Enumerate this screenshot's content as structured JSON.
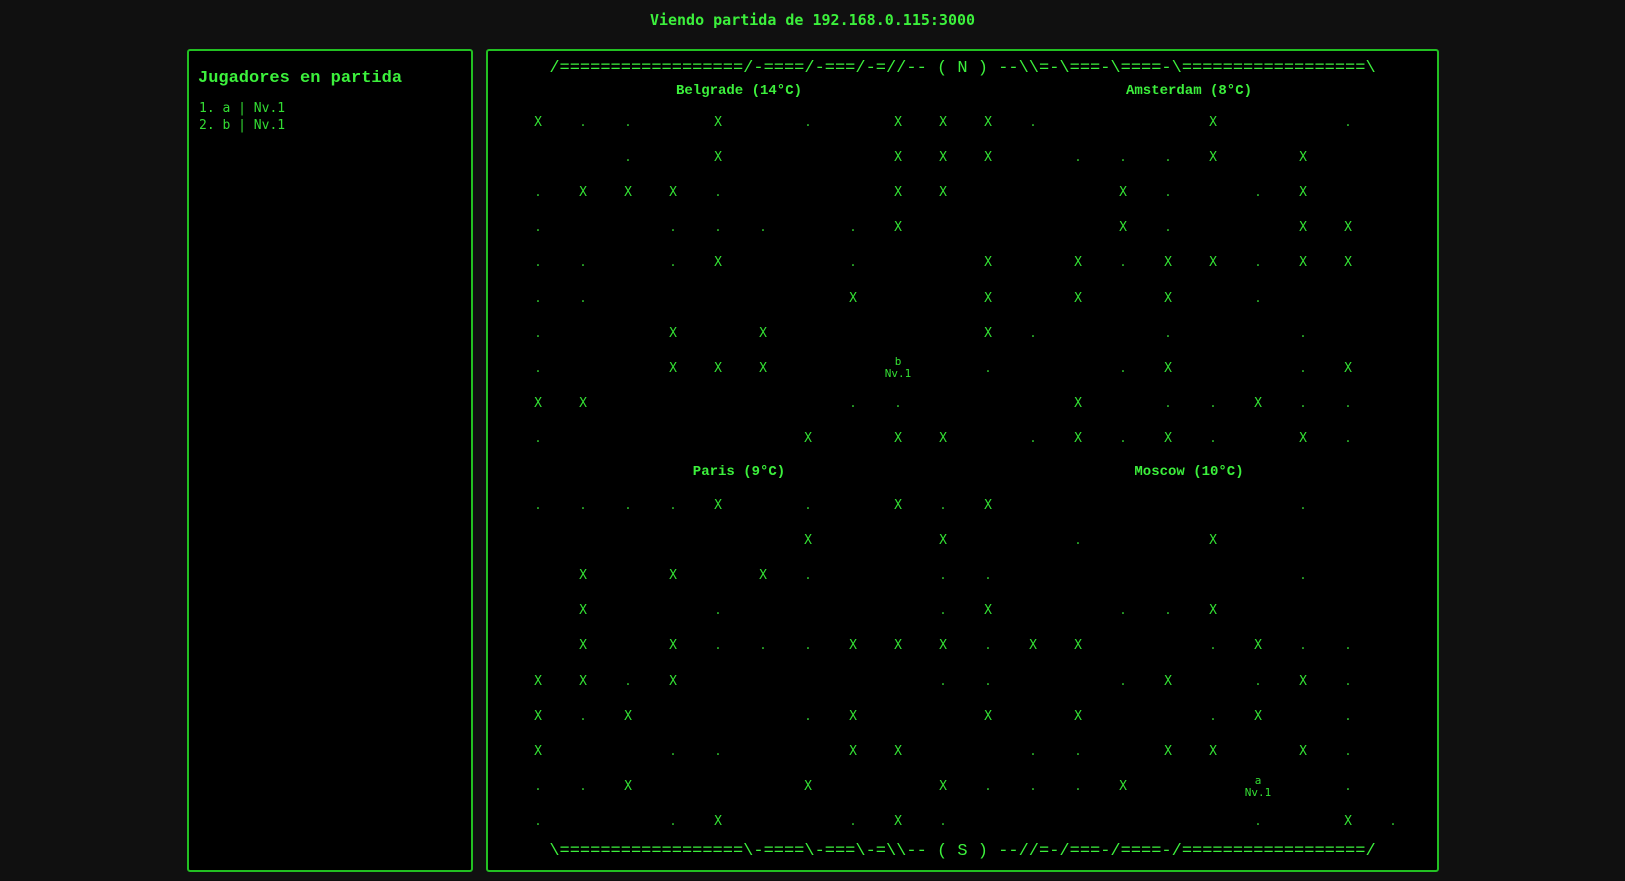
{
  "header": {
    "title": "Viendo partida de 192.168.0.115:3000"
  },
  "players_panel": {
    "title": "Jugadores en partida",
    "players": [
      "1. a | Nv.1",
      "2. b | Nv.1"
    ]
  },
  "map": {
    "north_border": "/==================/-====/-===/-=//-- ( N ) --\\\\=-\\===-\\====-\\==================\\",
    "south_border": "\\==================\\-====\\-===\\-=\\\\-- ( S ) --//=-/===-/====-/==================/",
    "cities": [
      {
        "label": "Belgrade (14°C)",
        "quadrant": "top-left"
      },
      {
        "label": "Amsterdam (8°C)",
        "quadrant": "top-right"
      },
      {
        "label": "Paris (9°C)",
        "quadrant": "bottom-left"
      },
      {
        "label": "Moscow (10°C)",
        "quadrant": "bottom-right"
      }
    ],
    "grid": [
      "X.. X . XXX.   X  .",
      "  . X   XXX ...X X ",
      ".XXX.   XX   X. .X ",
      ".  ... .X    X.  XX",
      ".. .X  .  X X.XX.XX",
      "..     X  X X X .  ",
      ".  X X    X.  .  . ",
      ".  XXX  bb.  .X  .X",
      "XX     ..   X ..X..",
      ".     X XX .X.X. X.",
      "....X . X.X      . ",
      "      X  X  .  X   ",
      " X X X.  ..      .  ",
      " X  .    .X  ..X   ",
      " X X...XXX.XX  .X..",
      "XX.X     ..  .X .X.",
      "X.X   .X  X X  .X .",
      "X  ..  XX  .. XX X.",
      "..X   X  X...X  aa.",
      ".  .X  .X.      . X."
    ],
    "player_markers": [
      {
        "name": "b",
        "level": "Nv.1"
      },
      {
        "name": "a",
        "level": "Nv.1"
      }
    ]
  }
}
